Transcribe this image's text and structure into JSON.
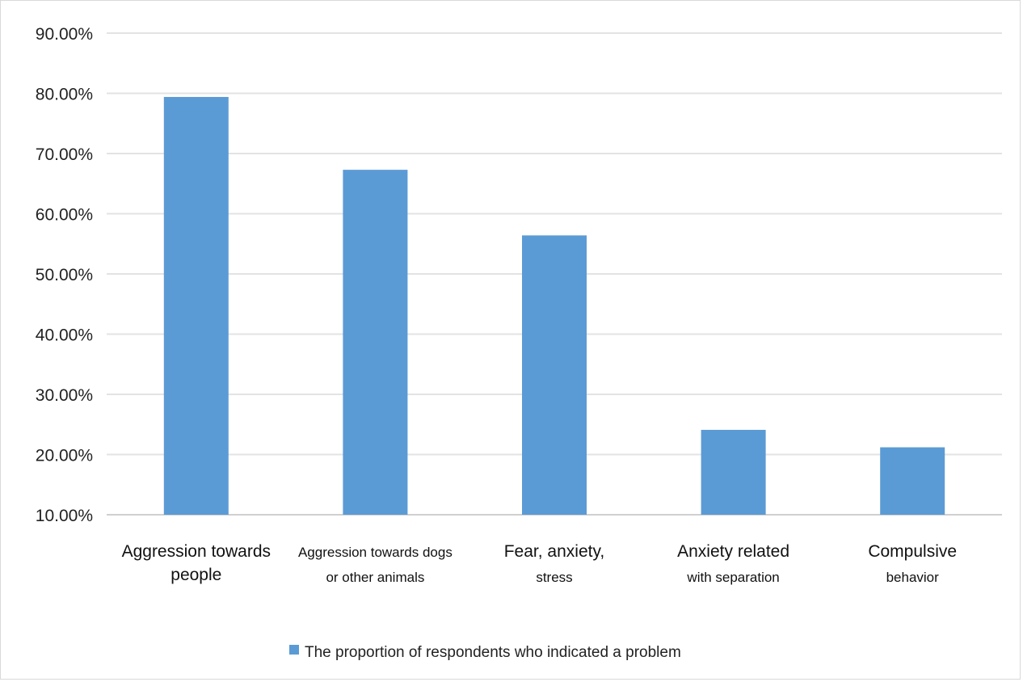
{
  "chart_data": {
    "type": "bar",
    "title": "",
    "xlabel": "",
    "ylabel": "",
    "ylim": [
      10,
      90
    ],
    "yticks": [
      "10.00%",
      "20.00%",
      "30.00%",
      "40.00%",
      "50.00%",
      "60.00%",
      "70.00%",
      "80.00%",
      "90.00%"
    ],
    "grid": true,
    "legend_position": "bottom",
    "categories": [
      [
        "Aggression towards",
        "people"
      ],
      [
        "Aggression towards dogs",
        "or other animals"
      ],
      [
        "Fear, anxiety,",
        "stress"
      ],
      [
        "Anxiety related",
        "with separation"
      ],
      [
        "Compulsive",
        "behavior"
      ]
    ],
    "series": [
      {
        "name": "The proportion of respondents who indicated a problem",
        "color": "#5b9bd5",
        "values": [
          79.4,
          67.3,
          56.4,
          24.1,
          21.2
        ]
      }
    ]
  }
}
